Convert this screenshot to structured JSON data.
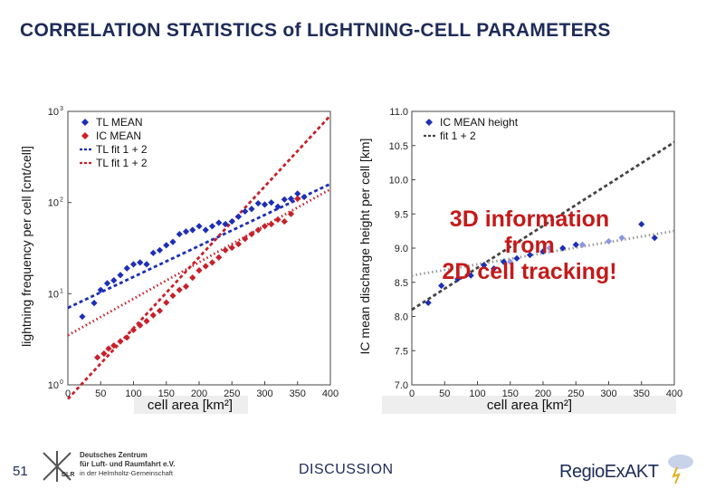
{
  "title": "CORRELATION STATISTICS of LIGHTNING-CELL PARAMETERS",
  "page_number": "51",
  "footer": {
    "dlr_line1": "Deutsches Zentrum",
    "dlr_line2": "für Luft- und Raumfahrt e.V.",
    "dlr_line3": "in der Helmholtz-Gemeinschaft",
    "dlr_abbr": "DLR",
    "discussion": "DISCUSSION",
    "regio": "RegioExAKT"
  },
  "overlay_text": [
    "3D information",
    "from",
    "2D cell tracking!"
  ],
  "colors": {
    "blue": "#1d2fb5",
    "red": "#c8202a",
    "lightblue": "#8a96e0",
    "gray": "#777777"
  },
  "chart_data": [
    {
      "type": "scatter",
      "title": "",
      "xlabel": "cell area [km²]",
      "ylabel": "lightning frequency per cell [cnt/cell]",
      "yscale": "log",
      "xlim": [
        0,
        400
      ],
      "ylim": [
        1,
        1000
      ],
      "xticks": [
        "0",
        "50",
        "100",
        "150",
        "200",
        "250",
        "300",
        "350",
        "400"
      ],
      "yticks": [
        {
          "value": 1,
          "label": "10",
          "exp": "0"
        },
        {
          "value": 10,
          "label": "10",
          "exp": "1"
        },
        {
          "value": 100,
          "label": "10",
          "exp": "2"
        },
        {
          "value": 1000,
          "label": "10",
          "exp": "3"
        }
      ],
      "series": [
        {
          "name": "TL MEAN",
          "kind": "points",
          "marker": "diamond",
          "color": "#1d2fb5",
          "points": [
            [
              22,
              5.6
            ],
            [
              40,
              7.9
            ],
            [
              50,
              11
            ],
            [
              60,
              13
            ],
            [
              70,
              14
            ],
            [
              80,
              16
            ],
            [
              90,
              19
            ],
            [
              100,
              21
            ],
            [
              110,
              22
            ],
            [
              120,
              21
            ],
            [
              130,
              28
            ],
            [
              140,
              30
            ],
            [
              150,
              34
            ],
            [
              160,
              37
            ],
            [
              170,
              45
            ],
            [
              180,
              48
            ],
            [
              190,
              50
            ],
            [
              200,
              55
            ],
            [
              210,
              50
            ],
            [
              220,
              55
            ],
            [
              230,
              60
            ],
            [
              240,
              58
            ],
            [
              250,
              62
            ],
            [
              260,
              70
            ],
            [
              270,
              80
            ],
            [
              280,
              85
            ],
            [
              290,
              98
            ],
            [
              300,
              95
            ],
            [
              310,
              100
            ],
            [
              320,
              90
            ],
            [
              330,
              108
            ],
            [
              340,
              110
            ],
            [
              350,
              125
            ],
            [
              360,
              115
            ]
          ]
        },
        {
          "name": "IC MEAN",
          "kind": "points",
          "marker": "diamond",
          "color": "#c8202a",
          "points": [
            [
              45,
              2.0
            ],
            [
              55,
              2.2
            ],
            [
              62,
              2.5
            ],
            [
              70,
              2.7
            ],
            [
              80,
              3.0
            ],
            [
              90,
              3.3
            ],
            [
              100,
              4.0
            ],
            [
              110,
              4.5
            ],
            [
              120,
              5.0
            ],
            [
              130,
              5.8
            ],
            [
              140,
              6.5
            ],
            [
              150,
              8.0
            ],
            [
              160,
              9.5
            ],
            [
              170,
              11
            ],
            [
              180,
              12
            ],
            [
              190,
              15
            ],
            [
              200,
              18
            ],
            [
              210,
              20
            ],
            [
              220,
              22
            ],
            [
              230,
              25
            ],
            [
              240,
              30
            ],
            [
              250,
              32
            ],
            [
              260,
              35
            ],
            [
              270,
              40
            ],
            [
              280,
              45
            ],
            [
              290,
              50
            ],
            [
              300,
              55
            ],
            [
              310,
              58
            ],
            [
              320,
              65
            ],
            [
              330,
              62
            ],
            [
              340,
              75
            ],
            [
              350,
              110
            ]
          ]
        },
        {
          "name": "TL fit 1 + 2",
          "kind": "line",
          "color": "#1d2fb5",
          "points": [
            [
              0,
              7
            ],
            [
              400,
              160
            ]
          ]
        },
        {
          "name": "TL fit 1 + 2",
          "kind": "line",
          "color": "#c8202a",
          "points": [
            [
              0,
              0.7
            ],
            [
              400,
              900
            ]
          ]
        },
        {
          "name": "TL fit 1 + 2",
          "kind": "line",
          "color": "#c8202a",
          "points": [
            [
              0,
              3.5
            ],
            [
              400,
              140
            ]
          ]
        }
      ],
      "legend": {
        "placement": "top-left",
        "entries": [
          "TL MEAN",
          "IC MEAN",
          "TL fit 1 + 2",
          "TL fit 1 + 2"
        ]
      }
    },
    {
      "type": "scatter",
      "title": "",
      "xlabel": "cell area [km²]",
      "ylabel": "IC mean discharge height per cell [km]",
      "xlim": [
        0,
        400
      ],
      "ylim": [
        7.0,
        11.0
      ],
      "xticks": [
        "0",
        "50",
        "100",
        "150",
        "200",
        "250",
        "300",
        "350",
        "400"
      ],
      "yticks": [
        "7.0",
        "7.5",
        "8.0",
        "8.5",
        "9.0",
        "9.5",
        "10.0",
        "10.5",
        "11.0"
      ],
      "series": [
        {
          "name": "IC MEAN height",
          "kind": "points",
          "marker": "diamond",
          "color": "#1d2fb5",
          "points": [
            [
              25,
              8.2
            ],
            [
              45,
              8.45
            ],
            [
              70,
              8.55
            ],
            [
              90,
              8.6
            ],
            [
              110,
              8.75
            ],
            [
              125,
              8.7
            ],
            [
              140,
              8.8
            ],
            [
              160,
              8.85
            ],
            [
              180,
              8.9
            ],
            [
              200,
              8.95
            ],
            [
              230,
              9.0
            ],
            [
              250,
              9.05
            ],
            [
              350,
              9.35
            ],
            [
              370,
              9.15
            ]
          ]
        },
        {
          "name": "",
          "kind": "points",
          "marker": "diamond",
          "color": "#8a96e0",
          "points": [
            [
              150,
              8.8
            ],
            [
              210,
              9.0
            ],
            [
              260,
              9.05
            ],
            [
              300,
              9.1
            ],
            [
              320,
              9.15
            ]
          ]
        },
        {
          "name": "fit 1 + 2",
          "kind": "line",
          "color": "#444444",
          "points": [
            [
              0,
              8.1
            ],
            [
              400,
              10.55
            ]
          ]
        },
        {
          "name": "fit 1 + 2",
          "kind": "line",
          "color": "#999999",
          "points": [
            [
              0,
              8.6
            ],
            [
              400,
              9.25
            ]
          ]
        }
      ],
      "legend": {
        "placement": "top-left",
        "entries": [
          "IC MEAN height",
          "fit 1 + 2"
        ]
      }
    }
  ]
}
